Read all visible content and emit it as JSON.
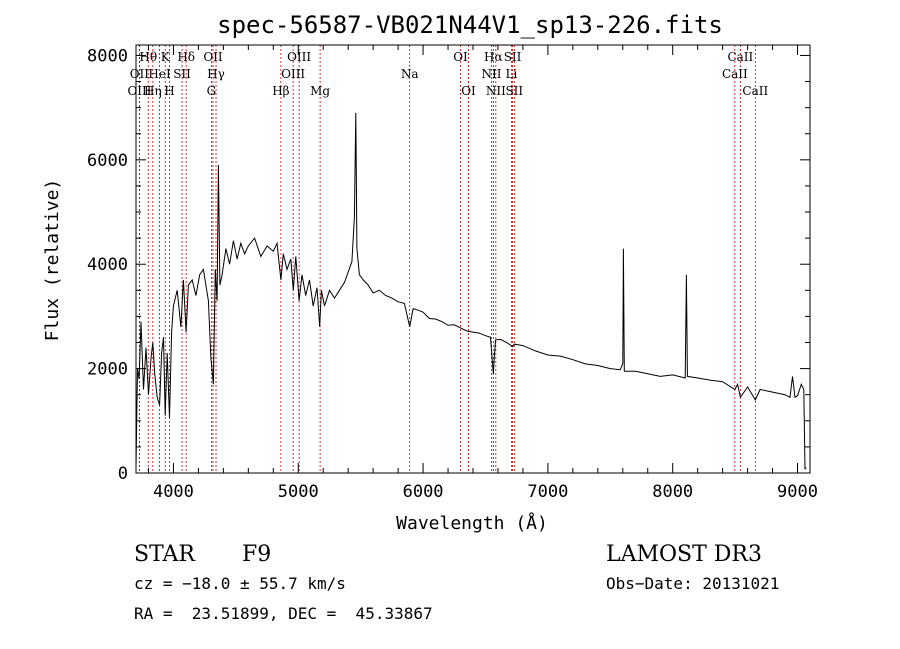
{
  "chart_data": {
    "type": "line",
    "title": "spec-56587-VB021N44V1_sp13-226.fits",
    "xlabel": "Wavelength (Å)",
    "ylabel": "Flux (relative)",
    "xlim": [
      3700,
      9100
    ],
    "ylim": [
      0,
      8200
    ],
    "xticks": [
      4000,
      5000,
      6000,
      7000,
      8000,
      9000
    ],
    "yticks": [
      0,
      2000,
      4000,
      6000,
      8000
    ],
    "xtick_labels": [
      "4000",
      "5000",
      "6000",
      "7000",
      "8000",
      "9000"
    ],
    "ytick_labels": [
      "0",
      "2000",
      "4000",
      "6000",
      "8000"
    ],
    "grid": false,
    "series": [
      {
        "name": "flux",
        "points": [
          [
            3700,
            100
          ],
          [
            3712,
            2000
          ],
          [
            3725,
            1800
          ],
          [
            3740,
            2900
          ],
          [
            3760,
            1600
          ],
          [
            3780,
            2400
          ],
          [
            3800,
            1500
          ],
          [
            3820,
            2200
          ],
          [
            3835,
            2500
          ],
          [
            3850,
            1900
          ],
          [
            3870,
            1450
          ],
          [
            3889,
            1300
          ],
          [
            3905,
            2300
          ],
          [
            3920,
            2600
          ],
          [
            3934,
            1100
          ],
          [
            3950,
            2300
          ],
          [
            3968,
            1050
          ],
          [
            3985,
            2700
          ],
          [
            4000,
            3200
          ],
          [
            4030,
            3500
          ],
          [
            4060,
            2800
          ],
          [
            4080,
            3700
          ],
          [
            4101,
            2700
          ],
          [
            4120,
            3600
          ],
          [
            4150,
            3700
          ],
          [
            4180,
            3400
          ],
          [
            4210,
            3800
          ],
          [
            4240,
            3900
          ],
          [
            4280,
            3300
          ],
          [
            4300,
            2200
          ],
          [
            4320,
            1700
          ],
          [
            4335,
            3900
          ],
          [
            4350,
            3300
          ],
          [
            4360,
            5900
          ],
          [
            4372,
            3600
          ],
          [
            4390,
            3800
          ],
          [
            4420,
            4300
          ],
          [
            4450,
            4000
          ],
          [
            4480,
            4450
          ],
          [
            4510,
            4100
          ],
          [
            4540,
            4400
          ],
          [
            4570,
            4200
          ],
          [
            4600,
            4350
          ],
          [
            4650,
            4500
          ],
          [
            4700,
            4150
          ],
          [
            4750,
            4350
          ],
          [
            4800,
            4250
          ],
          [
            4830,
            4400
          ],
          [
            4861,
            3700
          ],
          [
            4880,
            4200
          ],
          [
            4910,
            3900
          ],
          [
            4940,
            4100
          ],
          [
            4960,
            3500
          ],
          [
            4980,
            4150
          ],
          [
            5007,
            3300
          ],
          [
            5030,
            3800
          ],
          [
            5060,
            3400
          ],
          [
            5090,
            3700
          ],
          [
            5120,
            3200
          ],
          [
            5150,
            3550
          ],
          [
            5172,
            2800
          ],
          [
            5185,
            3500
          ],
          [
            5210,
            3200
          ],
          [
            5250,
            3500
          ],
          [
            5290,
            3350
          ],
          [
            5330,
            3500
          ],
          [
            5370,
            3650
          ],
          [
            5400,
            3850
          ],
          [
            5430,
            4050
          ],
          [
            5450,
            4900
          ],
          [
            5461,
            6900
          ],
          [
            5470,
            4300
          ],
          [
            5490,
            3800
          ],
          [
            5520,
            3700
          ],
          [
            5560,
            3600
          ],
          [
            5600,
            3450
          ],
          [
            5650,
            3500
          ],
          [
            5700,
            3400
          ],
          [
            5750,
            3350
          ],
          [
            5800,
            3280
          ],
          [
            5850,
            3250
          ],
          [
            5893,
            2800
          ],
          [
            5920,
            3150
          ],
          [
            5960,
            3120
          ],
          [
            6000,
            3080
          ],
          [
            6050,
            2960
          ],
          [
            6100,
            2950
          ],
          [
            6150,
            2900
          ],
          [
            6200,
            2830
          ],
          [
            6250,
            2840
          ],
          [
            6300,
            2780
          ],
          [
            6350,
            2720
          ],
          [
            6400,
            2700
          ],
          [
            6450,
            2680
          ],
          [
            6500,
            2630
          ],
          [
            6540,
            2600
          ],
          [
            6563,
            1900
          ],
          [
            6580,
            2550
          ],
          [
            6620,
            2560
          ],
          [
            6670,
            2500
          ],
          [
            6717,
            2420
          ],
          [
            6730,
            2470
          ],
          [
            6800,
            2440
          ],
          [
            6900,
            2340
          ],
          [
            7000,
            2260
          ],
          [
            7100,
            2240
          ],
          [
            7200,
            2170
          ],
          [
            7300,
            2090
          ],
          [
            7400,
            2060
          ],
          [
            7500,
            2000
          ],
          [
            7580,
            1980
          ],
          [
            7600,
            2100
          ],
          [
            7605,
            4300
          ],
          [
            7612,
            1950
          ],
          [
            7700,
            1950
          ],
          [
            7800,
            1900
          ],
          [
            7900,
            1850
          ],
          [
            8000,
            1880
          ],
          [
            8100,
            1820
          ],
          [
            8110,
            3800
          ],
          [
            8118,
            1850
          ],
          [
            8200,
            1820
          ],
          [
            8300,
            1780
          ],
          [
            8400,
            1750
          ],
          [
            8498,
            1600
          ],
          [
            8520,
            1700
          ],
          [
            8542,
            1450
          ],
          [
            8600,
            1650
          ],
          [
            8662,
            1400
          ],
          [
            8700,
            1600
          ],
          [
            8800,
            1550
          ],
          [
            8900,
            1500
          ],
          [
            8940,
            1450
          ],
          [
            8960,
            1850
          ],
          [
            8980,
            1450
          ],
          [
            9000,
            1480
          ],
          [
            9030,
            1700
          ],
          [
            9050,
            1600
          ],
          [
            9060,
            80
          ],
          [
            9070,
            100
          ]
        ]
      }
    ],
    "lines": [
      {
        "name": "OII",
        "wavelength": 3727,
        "row": 1
      },
      {
        "name": "OIII",
        "wavelength": 3728,
        "row": 2
      },
      {
        "name": "Hθ",
        "wavelength": 3798,
        "row": 0
      },
      {
        "name": "Hη",
        "wavelength": 3835,
        "row": 2
      },
      {
        "name": "HeI",
        "wavelength": 3889,
        "row": 1
      },
      {
        "name": "K",
        "wavelength": 3934,
        "row": 0
      },
      {
        "name": "H",
        "wavelength": 3968,
        "row": 2
      },
      {
        "name": "SII",
        "wavelength": 4069,
        "row": 1
      },
      {
        "name": "Hδ",
        "wavelength": 4102,
        "row": 0
      },
      {
        "name": "G",
        "wavelength": 4304,
        "row": 2
      },
      {
        "name": "OII",
        "wavelength": 4317,
        "row": 0
      },
      {
        "name": "Hγ",
        "wavelength": 4341,
        "row": 1
      },
      {
        "name": "Hβ",
        "wavelength": 4861,
        "row": 2
      },
      {
        "name": "OIII",
        "wavelength": 4959,
        "row": 1
      },
      {
        "name": "OIII",
        "wavelength": 5007,
        "row": 0
      },
      {
        "name": "Mg",
        "wavelength": 5175,
        "row": 2
      },
      {
        "name": "Na",
        "wavelength": 5893,
        "row": 1
      },
      {
        "name": "OI",
        "wavelength": 6300,
        "row": 0
      },
      {
        "name": "OI",
        "wavelength": 6364,
        "row": 2
      },
      {
        "name": "NII",
        "wavelength": 6548,
        "row": 1
      },
      {
        "name": "Hα",
        "wavelength": 6563,
        "row": 0
      },
      {
        "name": "NII",
        "wavelength": 6583,
        "row": 2
      },
      {
        "name": "Li",
        "wavelength": 6708,
        "row": 1
      },
      {
        "name": "SII",
        "wavelength": 6717,
        "row": 0
      },
      {
        "name": "SII",
        "wavelength": 6731,
        "row": 2
      },
      {
        "name": "CaII",
        "wavelength": 8498,
        "row": 1
      },
      {
        "name": "CaII",
        "wavelength": 8542,
        "row": 0
      },
      {
        "name": "CaII",
        "wavelength": 8662,
        "row": 2
      }
    ]
  },
  "info": {
    "class_label": "STAR",
    "subclass": "F9",
    "survey": "LAMOST DR3",
    "cz_text": "cz = −18.0 ± 55.7 km/s",
    "obs_date_text": "Obs−Date: 20131021",
    "radec_text": "RA =  23.51899, DEC =  45.33867"
  },
  "colors": {
    "line_marker": "#c00000",
    "spectrum": "#000000",
    "axis": "#000000"
  }
}
